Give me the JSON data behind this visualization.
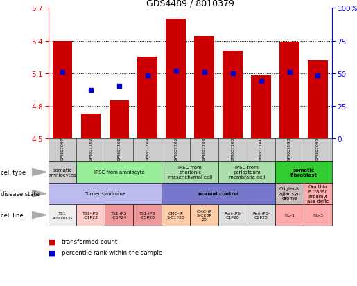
{
  "title": "GDS4489 / 8010379",
  "samples": [
    "GSM807097",
    "GSM807102",
    "GSM807103",
    "GSM807104",
    "GSM807105",
    "GSM807106",
    "GSM807100",
    "GSM807101",
    "GSM807098",
    "GSM807099"
  ],
  "bar_values": [
    5.4,
    4.73,
    4.85,
    5.25,
    5.6,
    5.44,
    5.31,
    5.08,
    5.39,
    5.22
  ],
  "bar_baseline": 4.5,
  "percentile_values": [
    51,
    37,
    40,
    48,
    52,
    51,
    50,
    44,
    51,
    48
  ],
  "ylim": [
    4.5,
    5.7
  ],
  "yticks_left": [
    4.5,
    4.8,
    5.1,
    5.4,
    5.7
  ],
  "yticks_right": [
    0,
    25,
    50,
    75,
    100
  ],
  "bar_color": "#cc0000",
  "blue_color": "#0000cc",
  "hline_y": [
    4.8,
    5.1,
    5.4
  ],
  "cell_type": [
    {
      "cs": 0,
      "ce": 0,
      "color": "#cccccc",
      "text": "somatic\namniocytes"
    },
    {
      "cs": 1,
      "ce": 3,
      "color": "#99ee99",
      "text": "iPSC from amniocyte"
    },
    {
      "cs": 4,
      "ce": 5,
      "color": "#aaddaa",
      "text": "iPSC from\nchorionic\nmesenchymal cell"
    },
    {
      "cs": 6,
      "ce": 7,
      "color": "#aaddaa",
      "text": "iPSC from\nperiosteum\nmembrane cell"
    },
    {
      "cs": 8,
      "ce": 9,
      "color": "#33cc33",
      "text": "somatic\nfibroblast"
    }
  ],
  "disease_state": [
    {
      "cs": 0,
      "ce": 3,
      "color": "#bbbbee",
      "text": "Turner syndrome",
      "bold": false
    },
    {
      "cs": 4,
      "ce": 7,
      "color": "#7777cc",
      "text": "normal control",
      "bold": true
    },
    {
      "cs": 8,
      "ce": 8,
      "color": "#ccbbbb",
      "text": "Crigler-N\najjar syn\ndrome",
      "bold": false
    },
    {
      "cs": 9,
      "ce": 9,
      "color": "#ffaaaa",
      "text": "Ornithin\ne transc\narbamyl\nase defic",
      "bold": false
    }
  ],
  "cell_line": [
    {
      "cs": 0,
      "ce": 0,
      "color": "#eeeeee",
      "text": "TS1\namniocyt"
    },
    {
      "cs": 1,
      "ce": 1,
      "color": "#ffcccc",
      "text": "TS1-iPS\n-C1P22"
    },
    {
      "cs": 2,
      "ce": 2,
      "color": "#ee9999",
      "text": "TS1-iPS\n-C3P24"
    },
    {
      "cs": 3,
      "ce": 3,
      "color": "#ee9999",
      "text": "TS1-iPS\n-C5P20"
    },
    {
      "cs": 4,
      "ce": 4,
      "color": "#ffccaa",
      "text": "CMC-iP\nS-C1P20"
    },
    {
      "cs": 5,
      "ce": 5,
      "color": "#ffccaa",
      "text": "CMC-iP\nS-C28P\n20"
    },
    {
      "cs": 6,
      "ce": 6,
      "color": "#dddddd",
      "text": "Peri-iPS-\nC1P20"
    },
    {
      "cs": 7,
      "ce": 7,
      "color": "#dddddd",
      "text": "Peri-iPS-\nC2P20"
    },
    {
      "cs": 8,
      "ce": 8,
      "color": "#ffaaaa",
      "text": "Fib-1"
    },
    {
      "cs": 9,
      "ce": 9,
      "color": "#ffaaaa",
      "text": "Fib-3"
    }
  ],
  "row_labels": [
    "cell type",
    "disease state",
    "cell line"
  ],
  "legend_items": [
    {
      "color": "#cc0000",
      "label": "transformed count"
    },
    {
      "color": "#0000cc",
      "label": "percentile rank within the sample"
    }
  ]
}
